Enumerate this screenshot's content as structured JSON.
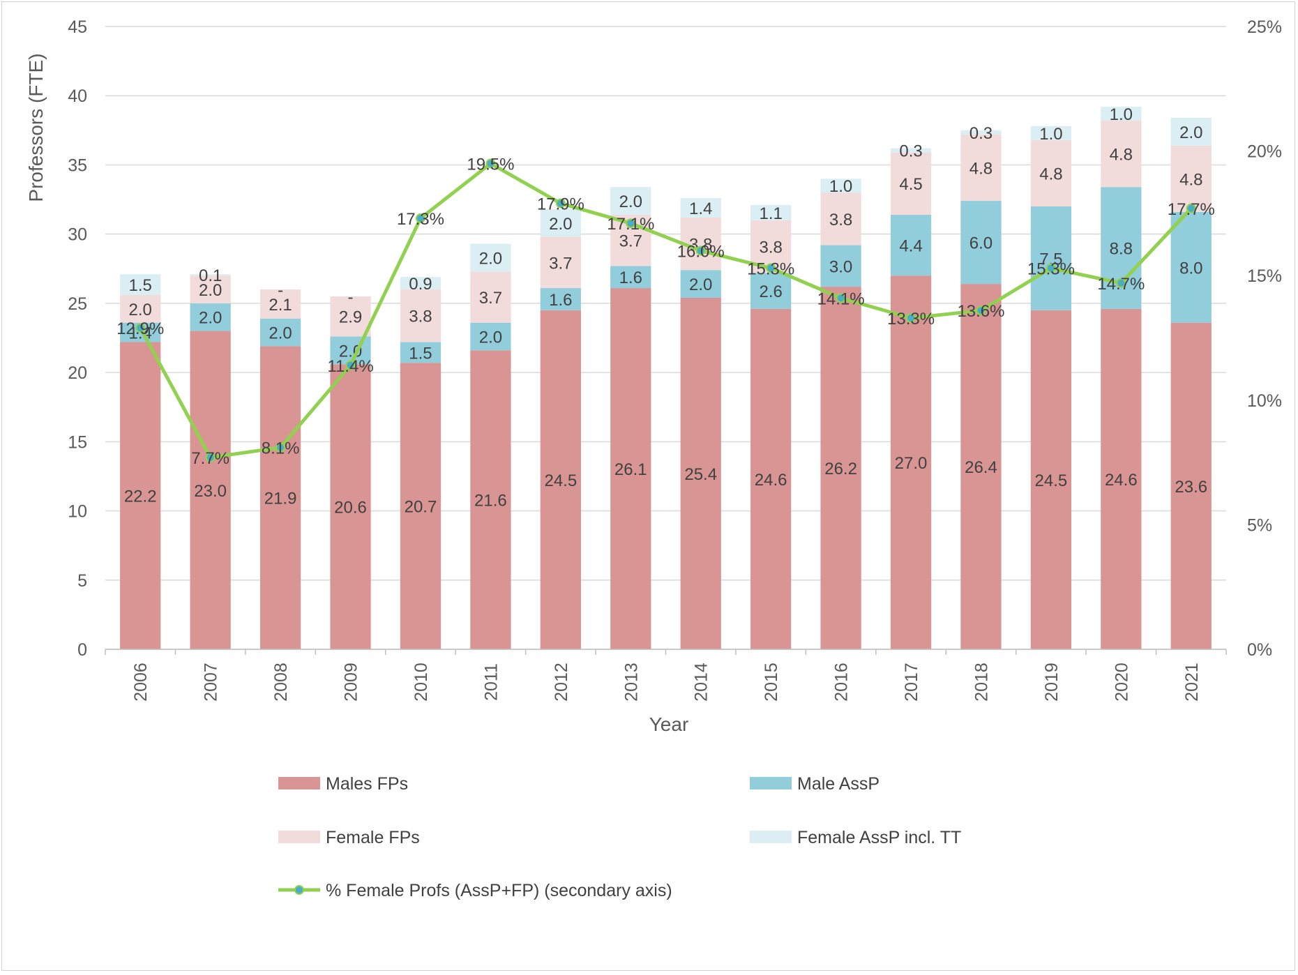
{
  "chart_data": {
    "type": "bar",
    "stacked": true,
    "title": "",
    "xlabel": "Year",
    "ylabel": "Professors (FTE)",
    "ylim": [
      0,
      45
    ],
    "y_ticks": [
      0,
      5,
      10,
      15,
      20,
      25,
      30,
      35,
      40,
      45
    ],
    "y2lim": [
      0,
      25
    ],
    "y2_ticks": [
      "0%",
      "5%",
      "10%",
      "15%",
      "20%",
      "25%"
    ],
    "grid": true,
    "legend_position": "bottom",
    "categories": [
      "2006",
      "2007",
      "2008",
      "2009",
      "2010",
      "2011",
      "2012",
      "2013",
      "2014",
      "2015",
      "2016",
      "2017",
      "2018",
      "2019",
      "2020",
      "2021"
    ],
    "series": [
      {
        "name": "Males FPs",
        "type": "bar",
        "color": "#d99594",
        "values": [
          22.2,
          23.0,
          21.9,
          20.6,
          20.7,
          21.6,
          24.5,
          26.1,
          25.4,
          24.6,
          26.2,
          27.0,
          26.4,
          24.5,
          24.6,
          23.6
        ],
        "labels": [
          "22.2",
          "23.0",
          "21.9",
          "20.6",
          "20.7",
          "21.6",
          "24.5",
          "26.1",
          "25.4",
          "24.6",
          "26.2",
          "27.0",
          "26.4",
          "24.5",
          "24.6",
          "23.6"
        ]
      },
      {
        "name": "Male AssP",
        "type": "bar",
        "color": "#92cddc",
        "values": [
          1.4,
          2.0,
          2.0,
          2.0,
          1.5,
          2.0,
          1.6,
          1.6,
          2.0,
          2.6,
          3.0,
          4.4,
          6.0,
          7.5,
          8.8,
          8.0
        ],
        "labels": [
          "1.4",
          "2.0",
          "2.0",
          "2.0",
          "1.5",
          "2.0",
          "1.6",
          "1.6",
          "2.0",
          "2.6",
          "3.0",
          "4.4",
          "6.0",
          "7.5",
          "8.8",
          "8.0"
        ]
      },
      {
        "name": "Female FPs",
        "type": "bar",
        "color": "#f2dcdb",
        "values": [
          2.0,
          2.0,
          2.1,
          2.9,
          3.8,
          3.7,
          3.7,
          3.7,
          3.8,
          3.8,
          3.8,
          4.5,
          4.8,
          4.8,
          4.8,
          4.8
        ],
        "labels": [
          "2.0",
          "2.0",
          "2.1",
          "2.9",
          "3.8",
          "3.7",
          "3.7",
          "3.7",
          "3.8",
          "3.8",
          "3.8",
          "4.5",
          "4.8",
          "4.8",
          "4.8",
          "4.8"
        ]
      },
      {
        "name": "Female AssP incl. TT",
        "type": "bar",
        "color": "#daeef3",
        "values": [
          1.5,
          0.1,
          0,
          0,
          0.9,
          2.0,
          2.0,
          2.0,
          1.4,
          1.1,
          1.0,
          0.3,
          0.3,
          1.0,
          1.0,
          2.0
        ],
        "labels": [
          "1.5",
          "0.1",
          "-",
          "-",
          "0.9",
          "2.0",
          "2.0",
          "2.0",
          "1.4",
          "1.1",
          "1.0",
          "0.3",
          "0.3",
          "1.0",
          "1.0",
          "2.0"
        ]
      },
      {
        "name": "% Female Profs (AssP+FP) (secondary axis)",
        "type": "line",
        "axis": "secondary",
        "color": "#92d050",
        "marker_color": "#4bacc6",
        "values": [
          12.9,
          7.7,
          8.1,
          11.4,
          17.3,
          19.5,
          17.9,
          17.1,
          16.0,
          15.3,
          14.1,
          13.3,
          13.6,
          15.3,
          14.7,
          17.7
        ],
        "labels": [
          "12.9%",
          "7.7%",
          "8.1%",
          "11.4%",
          "17.3%",
          "19.5%",
          "17.9%",
          "17.1%",
          "16.0%",
          "15.3%",
          "14.1%",
          "13.3%",
          "13.6%",
          "15.3%",
          "14.7%",
          "17.7%"
        ]
      }
    ]
  }
}
